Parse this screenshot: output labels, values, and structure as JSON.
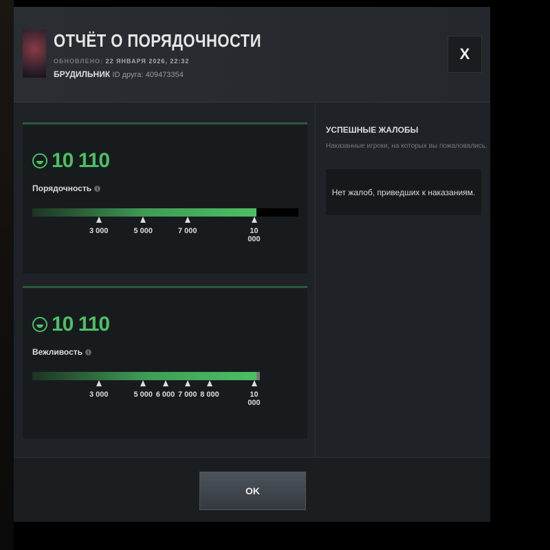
{
  "header": {
    "title": "ОТЧЁТ О ПОРЯДОЧНОСТИ",
    "updated_label": "ОБНОВЛЕНО:",
    "updated_value": "22 ЯНВАРЯ 2026, 22:32",
    "username": "БРУДИЛЬНИК",
    "friend_id_label": "ID друга:",
    "friend_id": "409473354",
    "close_label": "X"
  },
  "cards": [
    {
      "score": "10 110",
      "label": "Порядочность",
      "value": 10110,
      "scale_max": 12000,
      "ticks": [
        {
          "v": 3000,
          "t": "3 000"
        },
        {
          "v": 5000,
          "t": "5 000"
        },
        {
          "v": 7000,
          "t": "7 000"
        },
        {
          "v": 10000,
          "t": "10 000"
        }
      ]
    },
    {
      "score": "10 110",
      "label": "Вежливость",
      "value": 10110,
      "scale_max": 12000,
      "ticks": [
        {
          "v": 3000,
          "t": "3 000"
        },
        {
          "v": 5000,
          "t": "5 000"
        },
        {
          "v": 6000,
          "t": "6 000"
        },
        {
          "v": 7000,
          "t": "7 000"
        },
        {
          "v": 8000,
          "t": "8 000"
        },
        {
          "v": 10000,
          "t": "10 000"
        }
      ]
    }
  ],
  "reports": {
    "title": "УСПЕШНЫЕ ЖАЛОБЫ",
    "subtitle": "Наказанные игроки, на которых вы пожаловались.",
    "empty": "Нет жалоб, приведших к наказаниям."
  },
  "footer": {
    "ok_label": "OK"
  },
  "colors": {
    "accent": "#4cc063"
  }
}
